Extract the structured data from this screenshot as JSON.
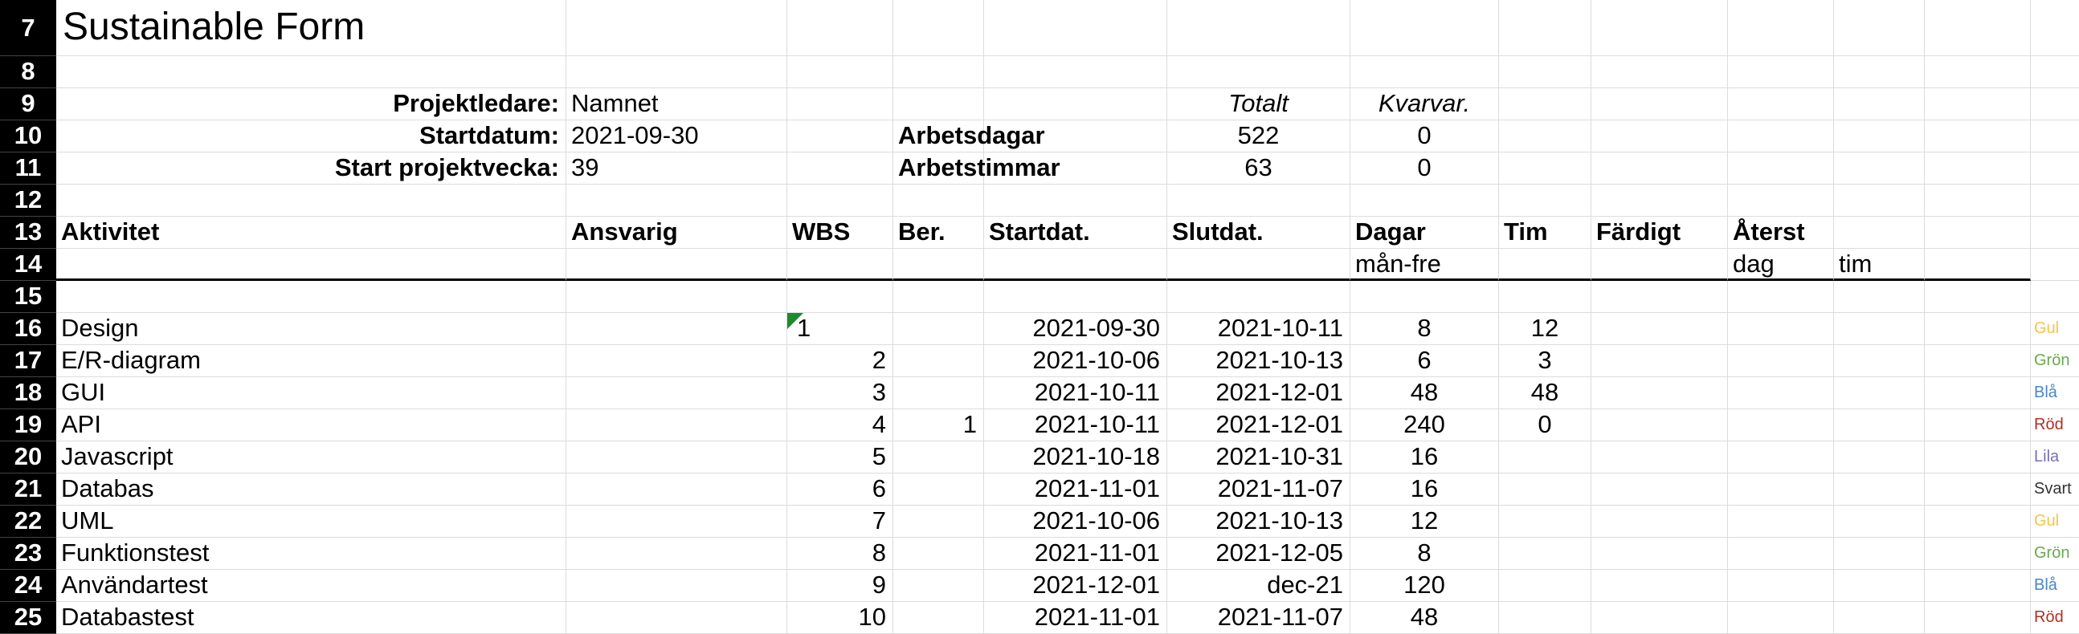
{
  "row_numbers": [
    "7",
    "8",
    "9",
    "10",
    "11",
    "12",
    "13",
    "14",
    "15",
    "16",
    "17",
    "18",
    "19",
    "20",
    "21",
    "22",
    "23",
    "24",
    "25"
  ],
  "title": "Sustainable Form",
  "info": {
    "projektledare_label": "Projektledare:",
    "projektledare_value": "Namnet",
    "startdatum_label": "Startdatum:",
    "startdatum_value": "2021-09-30",
    "startvecka_label": "Start projektvecka:",
    "startvecka_value": "39",
    "totalt_label": "Totalt",
    "kvarvar_label": "Kvarvar.",
    "arbetsdagar_label": "Arbetsdagar",
    "arbetsdagar_totalt": "522",
    "arbetsdagar_kvar": "0",
    "arbetstimmar_label": "Arbetstimmar",
    "arbetstimmar_totalt": "63",
    "arbetstimmar_kvar": "0"
  },
  "headers": {
    "aktivitet": "Aktivitet",
    "ansvarig": "Ansvarig",
    "wbs": "WBS",
    "ber": "Ber.",
    "startdat": "Startdat.",
    "slutdat": "Slutdat.",
    "dagar": "Dagar",
    "tim": "Tim",
    "fardigt": "Färdigt",
    "aterst": "Återst",
    "dagar_sub": "mån-fre",
    "aterst_dag": "dag",
    "aterst_tim": "tim"
  },
  "tasks": [
    {
      "name": "Design",
      "ansvarig": "",
      "wbs": "1",
      "ber": "",
      "start": "2021-09-30",
      "slut": "2021-10-11",
      "dagar": "8",
      "tim": "12",
      "color_label": "Gul",
      "color": "#f2c744"
    },
    {
      "name": "E/R-diagram",
      "ansvarig": "",
      "wbs": "2",
      "ber": "",
      "start": "2021-10-06",
      "slut": "2021-10-13",
      "dagar": "6",
      "tim": "3",
      "color_label": "Grön",
      "color": "#6aa84f"
    },
    {
      "name": "GUI",
      "ansvarig": "",
      "wbs": "3",
      "ber": "",
      "start": "2021-10-11",
      "slut": "2021-12-01",
      "dagar": "48",
      "tim": "48",
      "color_label": "Blå",
      "color": "#4a86c8"
    },
    {
      "name": "API",
      "ansvarig": "",
      "wbs": "4",
      "ber": "1",
      "start": "2021-10-11",
      "slut": "2021-12-01",
      "dagar": "240",
      "tim": "0",
      "color_label": "Röd",
      "color": "#b03020"
    },
    {
      "name": "Javascript",
      "ansvarig": "",
      "wbs": "5",
      "ber": "",
      "start": "2021-10-18",
      "slut": "2021-10-31",
      "dagar": "16",
      "tim": "",
      "color_label": "Lila",
      "color": "#7b6fb8"
    },
    {
      "name": "Databas",
      "ansvarig": "",
      "wbs": "6",
      "ber": "",
      "start": "2021-11-01",
      "slut": "2021-11-07",
      "dagar": "16",
      "tim": "",
      "color_label": "Svart",
      "color": "#333333"
    },
    {
      "name": "UML",
      "ansvarig": "",
      "wbs": "7",
      "ber": "",
      "start": "2021-10-06",
      "slut": "2021-10-13",
      "dagar": "12",
      "tim": "",
      "color_label": "Gul",
      "color": "#f2c744"
    },
    {
      "name": "Funktionstest",
      "ansvarig": "",
      "wbs": "8",
      "ber": "",
      "start": "2021-11-01",
      "slut": "2021-12-05",
      "dagar": "8",
      "tim": "",
      "color_label": "Grön",
      "color": "#6aa84f"
    },
    {
      "name": "Användartest",
      "ansvarig": "",
      "wbs": "9",
      "ber": "",
      "start": "2021-12-01",
      "slut": "dec-21",
      "dagar": "120",
      "tim": "",
      "color_label": "Blå",
      "color": "#4a86c8"
    },
    {
      "name": "Databastest",
      "ansvarig": "",
      "wbs": "10",
      "ber": "",
      "start": "2021-11-01",
      "slut": "2021-11-07",
      "dagar": "48",
      "tim": "",
      "color_label": "Röd",
      "color": "#b03020"
    }
  ]
}
